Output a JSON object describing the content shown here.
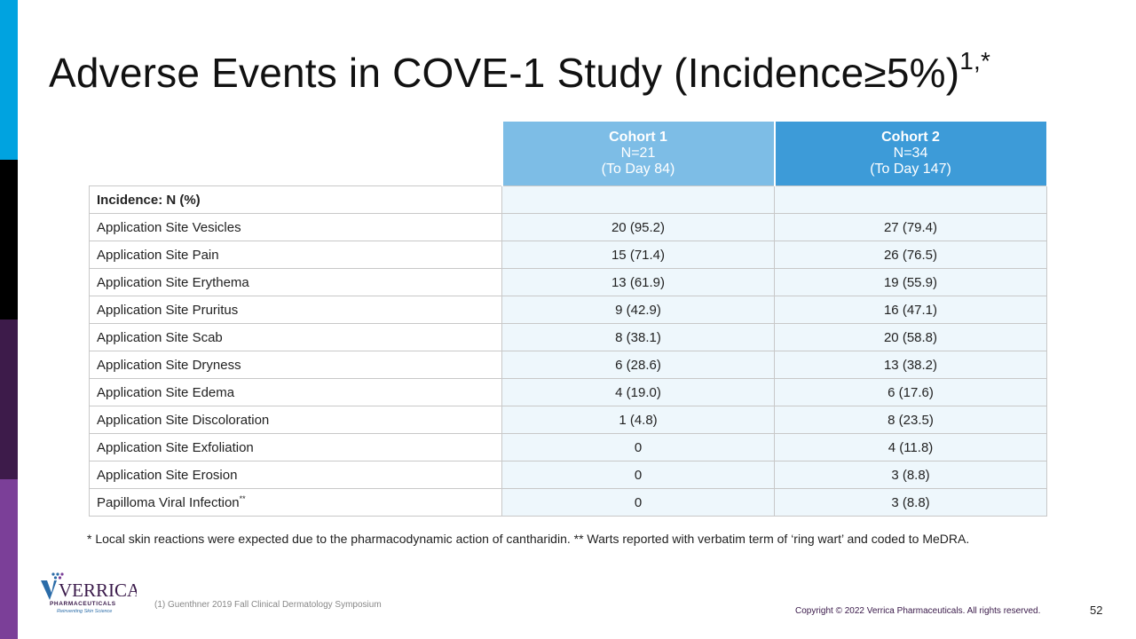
{
  "slide": {
    "title": "Adverse Events in COVE-1 Study (Incidence≥5%)",
    "title_superscript": "1,*",
    "accent_colors": [
      "#00a3e0",
      "#000000",
      "#3d1b4a",
      "#7b3f98"
    ]
  },
  "table": {
    "columns": [
      {
        "name": "Cohort 1",
        "n": "N=21",
        "period": "(To Day 84)"
      },
      {
        "name": "Cohort 2",
        "n": "N=34",
        "period": "(To Day 147)"
      }
    ],
    "group_label": "Incidence: N (%)",
    "rows": [
      {
        "label": "Application Site Vesicles",
        "c1": "20 (95.2)",
        "c2": "27 (79.4)"
      },
      {
        "label": "Application Site Pain",
        "c1": "15 (71.4)",
        "c2": "26 (76.5)"
      },
      {
        "label": "Application Site Erythema",
        "c1": "13 (61.9)",
        "c2": "19 (55.9)"
      },
      {
        "label": "Application Site Pruritus",
        "c1": "9 (42.9)",
        "c2": "16 (47.1)"
      },
      {
        "label": "Application Site Scab",
        "c1": "8 (38.1)",
        "c2": "20 (58.8)"
      },
      {
        "label": "Application Site Dryness",
        "c1": "6 (28.6)",
        "c2": "13 (38.2)"
      },
      {
        "label": "Application Site Edema",
        "c1": "4 (19.0)",
        "c2": "6 (17.6)"
      },
      {
        "label": "Application Site Discoloration",
        "c1": "1 (4.8)",
        "c2": "8 (23.5)"
      },
      {
        "label": "Application Site Exfoliation",
        "c1": "0",
        "c2": "4 (11.8)"
      },
      {
        "label": "Application Site Erosion",
        "c1": "0",
        "c2": "3 (8.8)"
      },
      {
        "label": "Papilloma Viral Infection",
        "label_sup": "**",
        "c1": "0",
        "c2": "3 (8.8)"
      }
    ]
  },
  "footnote": "* Local skin reactions were expected due to the pharmacodynamic action of cantharidin. ** Warts reported with verbatim term of ‘ring wart’ and coded to MeDRA.",
  "logo": {
    "name": "VERRICA",
    "sub": "PHARMACEUTICALS",
    "tagline": "Reinventing Skin Science"
  },
  "reference": "(1) Guenthner 2019 Fall Clinical Dermatology Symposium",
  "copyright": "Copyright © 2022 Verrica Pharmaceuticals. All rights reserved.",
  "page_number": "52"
}
